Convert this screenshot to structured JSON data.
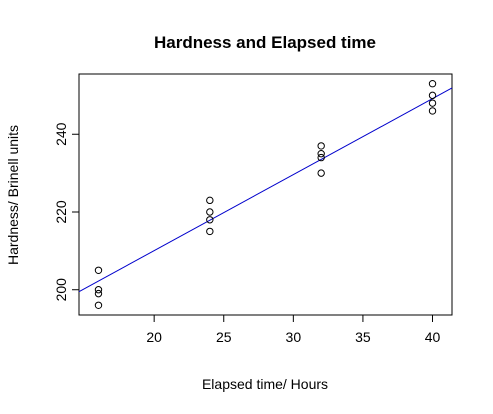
{
  "chart_data": {
    "type": "scatter",
    "title": "Hardness and Elapsed time",
    "xlabel": "Elapsed time/ Hours",
    "ylabel": "Hardness/ Brinell units",
    "xlim": [
      14.6,
      41.4
    ],
    "ylim": [
      193.5,
      255.5
    ],
    "x_ticks": [
      20,
      25,
      30,
      35,
      40
    ],
    "y_ticks": [
      200,
      220,
      240
    ],
    "grid": false,
    "legend": "none",
    "series": [
      {
        "x": [
          16,
          16,
          16,
          16,
          24,
          24,
          24,
          24,
          32,
          32,
          32,
          32,
          40,
          40,
          40,
          40
        ],
        "y": [
          196,
          199,
          200,
          205,
          215,
          218,
          220,
          223,
          230,
          234,
          235,
          237,
          246,
          248,
          250,
          253
        ]
      }
    ],
    "fit_line": {
      "x": [
        14.6,
        41.4
      ],
      "y": [
        199.5,
        251.9
      ],
      "color": "#0000cc"
    },
    "point_color": "#000000"
  }
}
